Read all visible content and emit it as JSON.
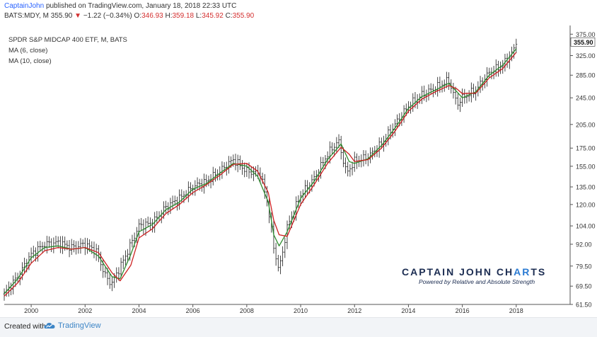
{
  "header": {
    "author": "CaptainJohn",
    "published": "published on TradingView.com, January 18, 2018 22:33 UTC",
    "symbol": "BATS:MDY, M",
    "last": "355.90",
    "change": "−1.22 (−0.34%)",
    "open_label": "O:",
    "open": "346.93",
    "high_label": "H:",
    "high": "359.18",
    "low_label": "L:",
    "low": "345.92",
    "close_label": "C:",
    "close": "355.90"
  },
  "legend": {
    "title": "SPDR S&P MIDCAP 400 ETF, M, BATS",
    "ma1": "MA (6, close)",
    "ma2": "MA (10, close)"
  },
  "watermark": {
    "title_a": "CAPTAIN JOHN CH",
    "title_b": "AR",
    "title_c": "TS",
    "subtitle": "Powered by Relative and  Absolute Strength"
  },
  "footer": {
    "made_with": "Created with",
    "brand": "TradingView"
  },
  "colors": {
    "bars": "#1a1a1a",
    "ma6": "#2e8b2e",
    "ma10": "#cc1f1f",
    "price_tag": "#ffffff",
    "axis_text": "#333333"
  },
  "chart_data": {
    "type": "line",
    "scale": "log",
    "ylim": [
      61.5,
      390
    ],
    "xlim": [
      1999.0,
      2020.0
    ],
    "y_ticks": [
      "375.00",
      "355.90",
      "325.00",
      "285.00",
      "245.00",
      "205.00",
      "175.00",
      "155.00",
      "135.00",
      "120.00",
      "104.00",
      "92.00",
      "79.50",
      "69.50",
      "61.50"
    ],
    "x_ticks": [
      "2000",
      "2002",
      "2004",
      "2006",
      "2008",
      "2010",
      "2012",
      "2014",
      "2016",
      "2018"
    ],
    "last_price_label": "355.90",
    "series": [
      {
        "name": "MDY",
        "kind": "close",
        "x": [
          1999.0,
          1999.5,
          2000.0,
          2000.5,
          2001.0,
          2001.5,
          2002.0,
          2002.4,
          2002.8,
          2003.0,
          2003.5,
          2004.0,
          2004.5,
          2005.0,
          2005.5,
          2006.0,
          2006.5,
          2007.0,
          2007.5,
          2008.0,
          2008.5,
          2008.8,
          2009.0,
          2009.2,
          2009.5,
          2010.0,
          2010.5,
          2011.0,
          2011.4,
          2011.7,
          2012.0,
          2012.5,
          2013.0,
          2013.5,
          2014.0,
          2014.5,
          2015.0,
          2015.5,
          2015.8,
          2016.0,
          2016.5,
          2017.0,
          2017.5,
          2017.9,
          2018.0
        ],
        "values": [
          66,
          74,
          86,
          92,
          93,
          90,
          92,
          88,
          73,
          71,
          85,
          104,
          106,
          118,
          125,
          135,
          140,
          150,
          162,
          150,
          148,
          118,
          90,
          77,
          103,
          128,
          143,
          168,
          184,
          148,
          160,
          165,
          180,
          205,
          232,
          250,
          262,
          275,
          235,
          245,
          258,
          290,
          305,
          335,
          356
        ]
      },
      {
        "name": "MA (6, close)",
        "x": [
          1999.0,
          1999.5,
          2000.0,
          2000.5,
          2001.0,
          2001.5,
          2002.0,
          2002.5,
          2003.0,
          2003.3,
          2003.7,
          2004.0,
          2004.5,
          2005.0,
          2005.5,
          2006.0,
          2006.5,
          2007.0,
          2007.5,
          2008.0,
          2008.4,
          2008.8,
          2009.0,
          2009.2,
          2009.5,
          2010.0,
          2010.5,
          2011.0,
          2011.5,
          2011.8,
          2012.0,
          2012.5,
          2013.0,
          2013.5,
          2014.0,
          2014.5,
          2015.0,
          2015.5,
          2015.8,
          2016.0,
          2016.5,
          2017.0,
          2017.5,
          2018.0
        ],
        "values": [
          66,
          73,
          84,
          90,
          91,
          89,
          90,
          85,
          74,
          73,
          86,
          100,
          105,
          116,
          122,
          133,
          138,
          148,
          158,
          155,
          145,
          122,
          98,
          91,
          100,
          125,
          140,
          162,
          180,
          160,
          158,
          163,
          178,
          200,
          228,
          247,
          258,
          270,
          255,
          245,
          255,
          285,
          305,
          340
        ]
      },
      {
        "name": "MA (10, close)",
        "x": [
          1999.0,
          1999.5,
          2000.0,
          2000.5,
          2001.0,
          2001.5,
          2002.0,
          2002.5,
          2003.0,
          2003.3,
          2003.7,
          2004.0,
          2004.5,
          2005.0,
          2005.5,
          2006.0,
          2006.5,
          2007.0,
          2007.5,
          2008.0,
          2008.4,
          2008.8,
          2009.0,
          2009.2,
          2009.5,
          2010.0,
          2010.5,
          2011.0,
          2011.5,
          2011.8,
          2012.0,
          2012.5,
          2013.0,
          2013.5,
          2014.0,
          2014.5,
          2015.0,
          2015.5,
          2015.8,
          2016.0,
          2016.5,
          2017.0,
          2017.5,
          2018.0
        ],
        "values": [
          65,
          71,
          81,
          88,
          90,
          89,
          90,
          87,
          76,
          72,
          80,
          96,
          102,
          113,
          120,
          130,
          137,
          146,
          157,
          158,
          150,
          130,
          108,
          98,
          97,
          120,
          137,
          158,
          176,
          168,
          160,
          162,
          175,
          196,
          224,
          243,
          255,
          266,
          260,
          252,
          253,
          280,
          298,
          332
        ]
      }
    ]
  }
}
